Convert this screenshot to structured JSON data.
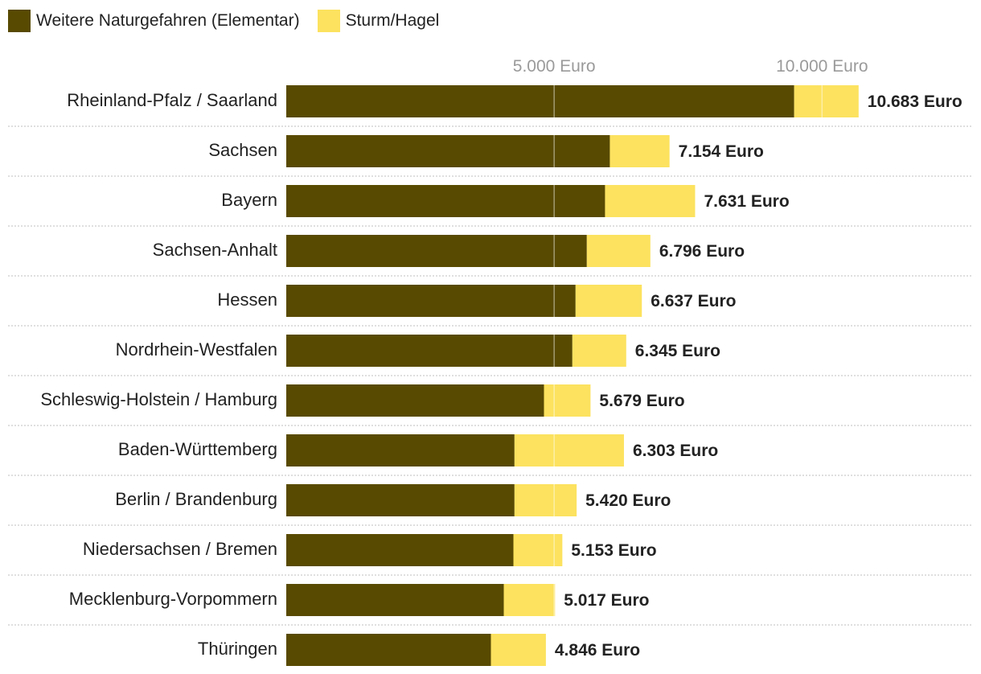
{
  "chart_data": {
    "type": "bar",
    "orientation": "horizontal",
    "stacked": true,
    "colors": {
      "elementar": "#584a00",
      "sturm": "#fce25f",
      "gridline": "#cccccc",
      "tick": "#9a9a9a"
    },
    "xticks": [
      {
        "value": 5000,
        "label": "5.000 Euro"
      },
      {
        "value": 10000,
        "label": "10.000 Euro"
      }
    ],
    "xlim": [
      0,
      10683
    ],
    "categories": [
      "Rheinland-Pfalz / Saarland",
      "Sachsen",
      "Bayern",
      "Sachsen-Anhalt",
      "Hessen",
      "Nordrhein-Westfalen",
      "Schleswig-Holstein / Hamburg",
      "Baden-Württemberg",
      "Berlin / Brandenburg",
      "Niedersachsen / Bremen",
      "Mecklenburg-Vorpommern",
      "Thüringen"
    ],
    "series": [
      {
        "name": "Weitere Naturgefahren (Elementar)",
        "values": [
          9480,
          6040,
          5950,
          5610,
          5400,
          5340,
          4810,
          4260,
          4260,
          4240,
          4060,
          3820
        ]
      },
      {
        "name": "Sturm/Hagel",
        "values": [
          1203,
          1114,
          1681,
          1186,
          1237,
          1005,
          869,
          2043,
          1160,
          913,
          957,
          1026
        ]
      }
    ],
    "totals": [
      10683,
      7154,
      7631,
      6796,
      6637,
      6345,
      5679,
      6303,
      5420,
      5153,
      5017,
      4846
    ],
    "total_labels": [
      "10.683 Euro",
      "7.154 Euro",
      "7.631 Euro",
      "6.796 Euro",
      "6.637 Euro",
      "6.345 Euro",
      "5.679 Euro",
      "6.303 Euro",
      "5.420 Euro",
      "5.153 Euro",
      "5.017 Euro",
      "4.846 Euro"
    ],
    "legend": "top-left"
  }
}
